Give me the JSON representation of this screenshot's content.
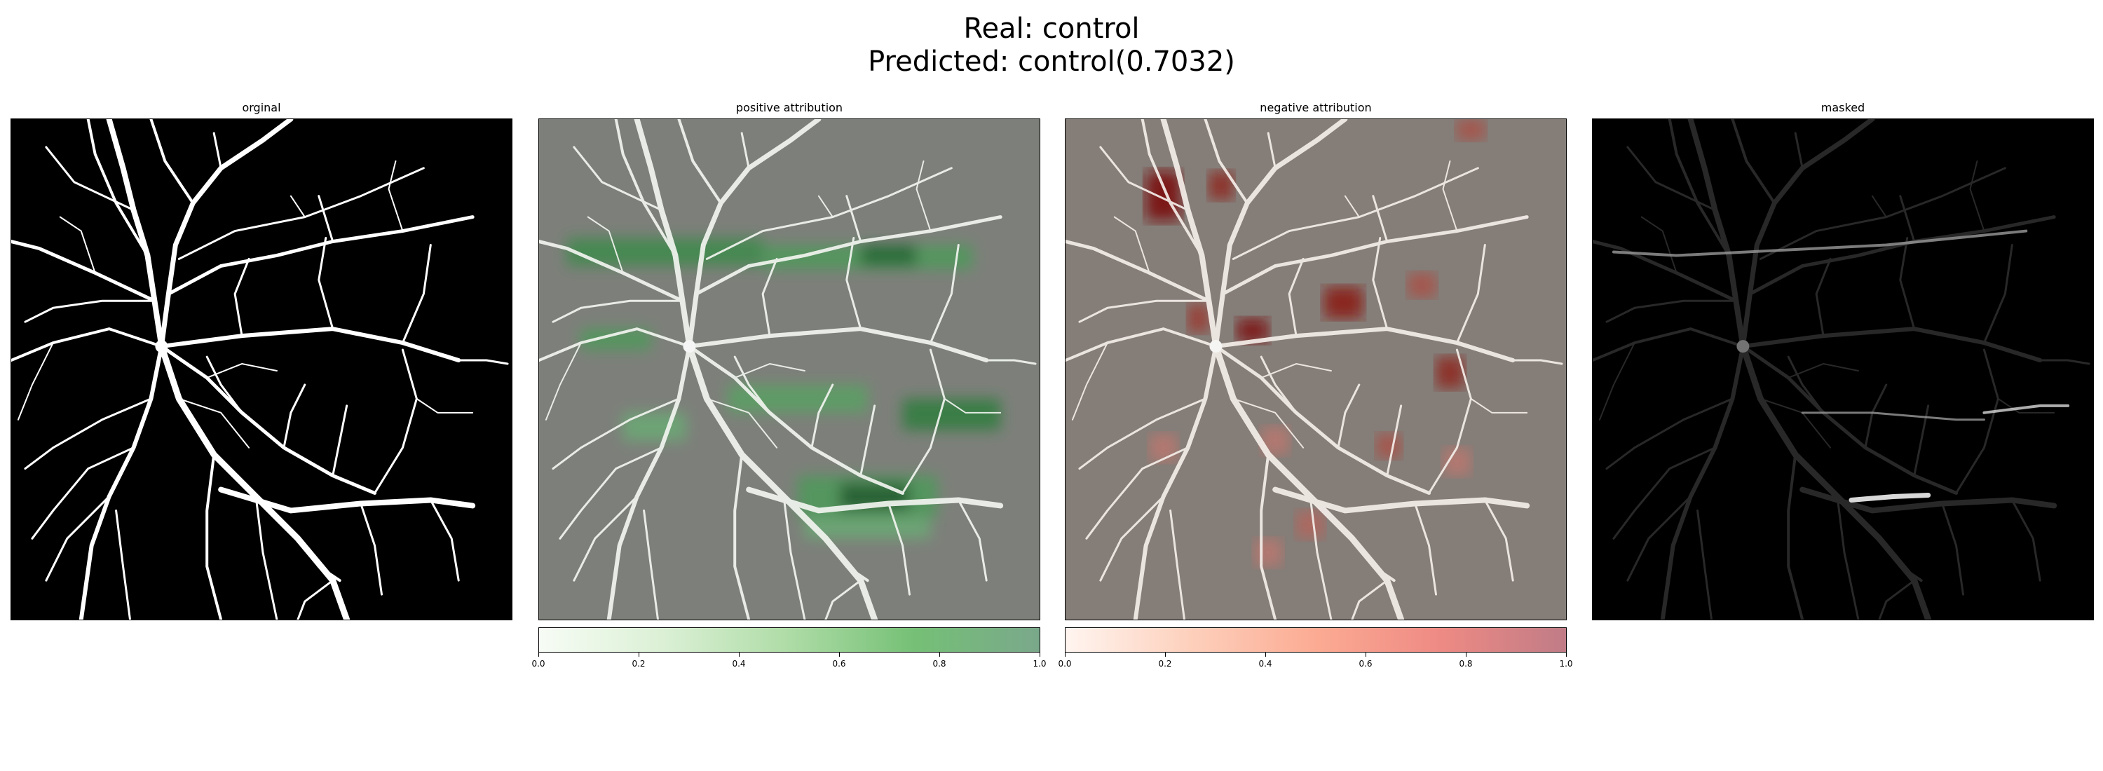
{
  "figure": {
    "title_line1": "Real: control",
    "title_line2": "Predicted: control(0.7032)"
  },
  "panels": [
    {
      "title": "orginal"
    },
    {
      "title": "positive attribution"
    },
    {
      "title": "negative attribution"
    },
    {
      "title": "masked"
    }
  ],
  "colorbars": {
    "positive": {
      "colormap": "Greens",
      "range": [
        0.0,
        1.0
      ],
      "ticks": [
        "0.0",
        "0.2",
        "0.4",
        "0.6",
        "0.8",
        "1.0"
      ],
      "color_low": "#f7fcf5",
      "color_high": "#7aa88b"
    },
    "negative": {
      "colormap": "Reds",
      "range": [
        0.0,
        1.0
      ],
      "ticks": [
        "0.0",
        "0.2",
        "0.4",
        "0.6",
        "0.8",
        "1.0"
      ],
      "color_low": "#fff5f0",
      "color_high": "#c07c86"
    }
  },
  "colors": {
    "vessel": "#ffffff",
    "background": "#000000",
    "positive_overlay_bg": "#7d807a",
    "negative_overlay_bg": "#857d78",
    "positive_hotspot": "#1f6b2e",
    "negative_hotspot": "#7a0d0d"
  }
}
